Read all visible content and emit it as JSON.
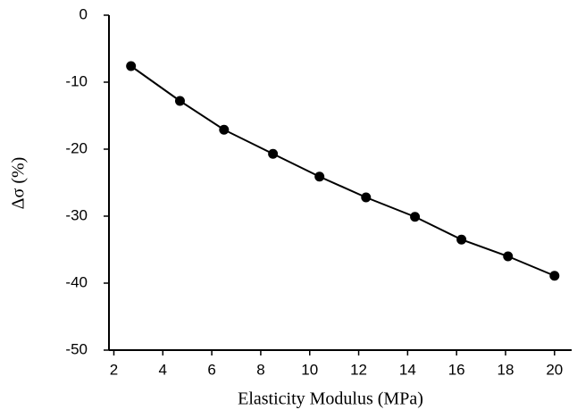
{
  "chart_data": {
    "type": "line",
    "x_label": "Elasticity Modulus (MPa)",
    "y_label": "Δσ (%)",
    "x": [
      2.7,
      4.7,
      6.5,
      8.5,
      10.4,
      12.3,
      14.3,
      16.2,
      18.1,
      20.0
    ],
    "series": [
      {
        "color": "#000000",
        "values": [
          -7.6,
          -12.8,
          -17.1,
          -20.7,
          -24.1,
          -27.2,
          -30.1,
          -33.5,
          -36.0,
          -38.9
        ]
      }
    ],
    "xlim": [
      1.8,
      20.7
    ],
    "xticks": [
      2,
      4,
      6,
      8,
      10,
      12,
      14,
      16,
      18,
      20
    ],
    "ylim": [
      -50,
      0
    ],
    "yticks": [
      -50,
      -40,
      -30,
      -20,
      -10,
      0
    ],
    "grid": false
  }
}
